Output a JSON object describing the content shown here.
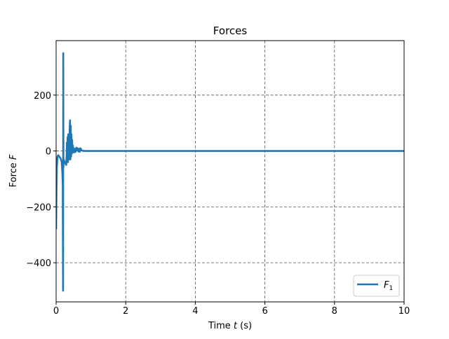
{
  "chart_data": {
    "type": "line",
    "title": "Forces",
    "xlabel_prefix": "Time ",
    "xlabel_var": "t",
    "xlabel_suffix": " (s)",
    "ylabel_prefix": "Force ",
    "ylabel_var": "F",
    "xlim": [
      0,
      10
    ],
    "ylim": [
      -540,
      395
    ],
    "xticks": [
      0,
      2,
      4,
      6,
      8,
      10
    ],
    "yticks": [
      -400,
      -200,
      0,
      200
    ],
    "ytick_labels": [
      "−400",
      "−200",
      "0",
      "200"
    ],
    "grid": true,
    "legend_position": "lower-right",
    "series": [
      {
        "name_base": "F",
        "name_sub": "1",
        "color": "#1f77b4",
        "x": [
          0.0,
          0.01,
          0.02,
          0.04,
          0.06,
          0.08,
          0.1,
          0.12,
          0.14,
          0.16,
          0.18,
          0.19,
          0.2,
          0.205,
          0.21,
          0.215,
          0.22,
          0.23,
          0.25,
          0.27,
          0.29,
          0.3,
          0.31,
          0.32,
          0.33,
          0.34,
          0.35,
          0.36,
          0.37,
          0.38,
          0.39,
          0.4,
          0.41,
          0.42,
          0.43,
          0.44,
          0.45,
          0.46,
          0.47,
          0.48,
          0.49,
          0.5,
          0.52,
          0.54,
          0.56,
          0.58,
          0.6,
          0.62,
          0.64,
          0.66,
          0.68,
          0.7,
          0.72,
          0.74,
          0.76,
          0.78,
          0.8,
          0.82,
          0.85,
          0.9,
          1.0,
          2.0,
          4.0,
          6.0,
          8.0,
          10.0
        ],
        "y": [
          -280,
          -150,
          -60,
          -20,
          -15,
          -18,
          -22,
          -25,
          -30,
          -40,
          -80,
          -120,
          -500,
          350,
          -60,
          -40,
          -30,
          -35,
          -40,
          -45,
          -50,
          -20,
          30,
          -30,
          50,
          -40,
          60,
          -20,
          40,
          -30,
          80,
          110,
          -30,
          90,
          -20,
          60,
          -10,
          40,
          -5,
          20,
          -5,
          10,
          -5,
          8,
          -3,
          12,
          2,
          10,
          -2,
          8,
          -3,
          10,
          5,
          2,
          1,
          0,
          1,
          0,
          0,
          0,
          0,
          0,
          0,
          0,
          0,
          0
        ]
      }
    ]
  }
}
